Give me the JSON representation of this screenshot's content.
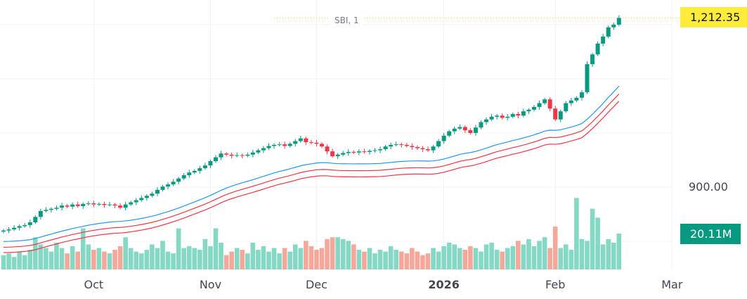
{
  "symbol_label": "SBI, 1",
  "last_price_label": "1,212.35",
  "last_volume_label": "20.11M",
  "price_axis_labels": [
    "900.00"
  ],
  "colors": {
    "up": "#089981",
    "down": "#f23645",
    "vol_up": "#84d8c4",
    "vol_down": "#f4a89a",
    "ma1": "#2196f3",
    "ma2": "#f23645",
    "ma3": "#f23645",
    "last_price_bg": "#ffeb3b",
    "volume_tag_bg": "#089981"
  },
  "chart_data": {
    "type": "candlestick",
    "title": "SBI, 1",
    "time_labels": [
      {
        "label": "Oct",
        "index": 17
      },
      {
        "label": "Nov",
        "index": 39
      },
      {
        "label": "Dec",
        "index": 59
      },
      {
        "label": "2026",
        "index": 83
      },
      {
        "label": "Feb",
        "index": 104
      },
      {
        "label": "Mar",
        "index": 126
      }
    ],
    "ylim": [
      790,
      1240
    ],
    "gridlines": [
      800,
      900,
      1000,
      1100,
      1200
    ],
    "close": [
      820,
      822,
      825,
      828,
      830,
      835,
      845,
      856,
      858,
      860,
      862,
      866,
      864,
      868,
      865,
      869,
      870,
      868,
      869,
      867,
      868,
      866,
      862,
      868,
      872,
      876,
      880,
      884,
      888,
      895,
      901,
      905,
      910,
      916,
      922,
      927,
      930,
      935,
      940,
      948,
      955,
      962,
      960,
      958,
      959,
      958,
      960,
      964,
      968,
      972,
      976,
      978,
      979,
      976,
      980,
      985,
      990,
      983,
      982,
      980,
      975,
      966,
      957,
      960,
      963,
      965,
      964,
      966,
      965,
      967,
      968,
      970,
      975,
      978,
      979,
      978,
      976,
      974,
      972,
      970,
      968,
      975,
      985,
      995,
      1003,
      1008,
      1011,
      1005,
      1000,
      1010,
      1020,
      1025,
      1030,
      1032,
      1028,
      1030,
      1035,
      1032,
      1040,
      1043,
      1048,
      1055,
      1062,
      1045,
      1025,
      1040,
      1055,
      1060,
      1065,
      1075,
      1127,
      1145,
      1165,
      1178,
      1195,
      1200,
      1212.35
    ],
    "volume_millions": [
      8,
      9,
      7,
      10,
      8,
      11,
      18,
      14,
      12,
      10,
      15,
      12,
      9,
      13,
      10,
      23,
      14,
      11,
      12,
      10,
      9,
      11,
      13,
      18,
      12,
      10,
      9,
      11,
      14,
      12,
      16,
      10,
      9,
      23,
      12,
      13,
      12,
      11,
      17,
      13,
      23,
      15,
      8,
      10,
      12,
      11,
      9,
      15,
      11,
      13,
      10,
      12,
      9,
      12,
      10,
      14,
      12,
      16,
      13,
      11,
      12,
      17,
      18,
      18,
      17,
      16,
      14,
      11,
      10,
      12,
      9,
      11,
      10,
      13,
      11,
      10,
      9,
      12,
      10,
      8,
      9,
      12,
      10,
      13,
      15,
      14,
      12,
      11,
      13,
      12,
      10,
      14,
      15,
      11,
      10,
      12,
      13,
      16,
      14,
      17,
      13,
      16,
      18,
      12,
      24,
      12,
      14,
      11,
      40,
      17,
      16,
      34,
      29,
      14,
      17,
      15,
      20.11
    ]
  }
}
